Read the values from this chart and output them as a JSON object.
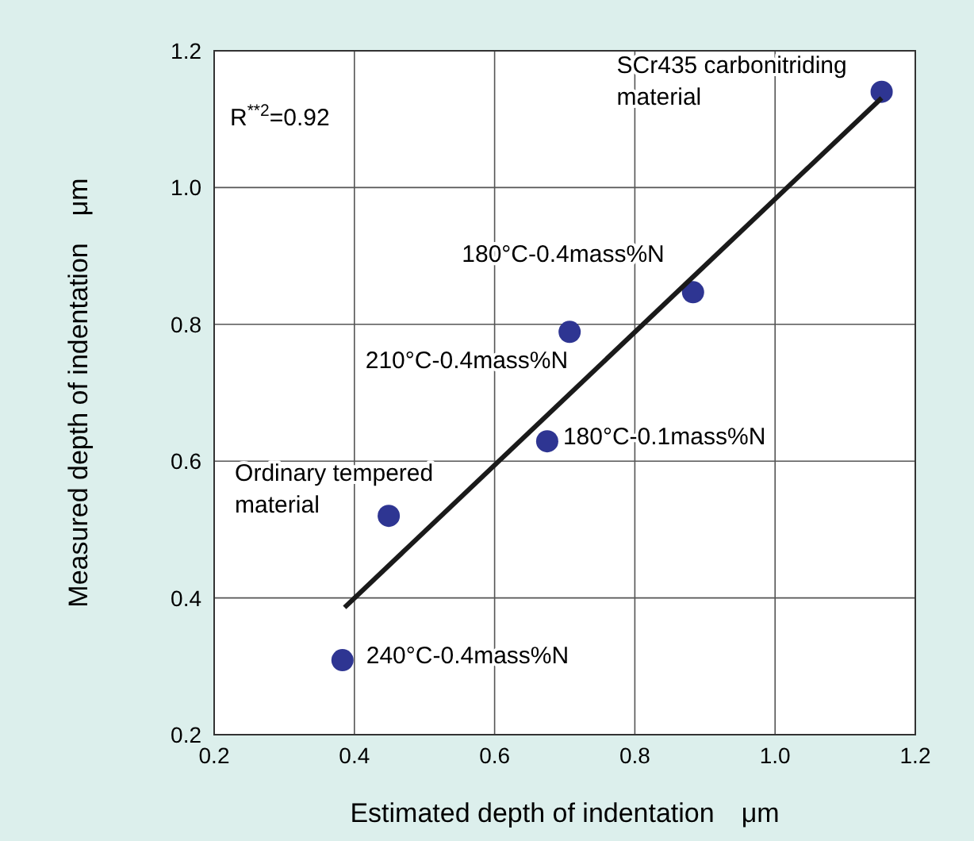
{
  "chart_data": {
    "type": "scatter",
    "xlabel": "Estimated depth of indentation　μm",
    "ylabel": "Measured depth of indentation　μm",
    "xlim": [
      0.2,
      1.2
    ],
    "ylim": [
      0.2,
      1.2
    ],
    "xticks": [
      0.2,
      0.4,
      0.6,
      0.8,
      {
        "value": 1,
        "label": "1.0"
      },
      1.2
    ],
    "yticks": [
      0.2,
      0.4,
      0.6,
      0.8,
      {
        "value": 1,
        "label": "1.0"
      },
      1.2
    ],
    "grid": true,
    "series": [
      {
        "marker": "circle",
        "color": "#2e3592",
        "x": [
          1.152,
          0.883,
          0.707,
          0.675,
          0.449,
          0.383
        ],
        "values": [
          1.14,
          0.847,
          0.789,
          0.629,
          0.52,
          0.309
        ]
      },
      {
        "type": "line",
        "marker": "none",
        "color": "#1a1a1a",
        "x": [
          0.386,
          1.152
        ],
        "values": [
          0.386,
          1.131
        ]
      }
    ],
    "annotations": [
      "R$^{**2}$=0.92",
      {
        "text": "SCr435 carbonitriding material",
        "x": 1.152,
        "y": 1.14
      },
      {
        "text": "180°C-0.4mass%N",
        "x": 0.883,
        "y": 0.847
      },
      {
        "text": "210°C-0.4mass%N",
        "x": 0.707,
        "y": 0.789
      },
      {
        "text": "180°C-0.1mass%N",
        "x": 0.675,
        "y": 0.629
      },
      {
        "text": "Ordinary tempered material",
        "x": 0.449,
        "y": 0.52
      },
      {
        "text": "240°C-0.4mass%N",
        "x": 0.383,
        "y": 0.309
      }
    ]
  }
}
